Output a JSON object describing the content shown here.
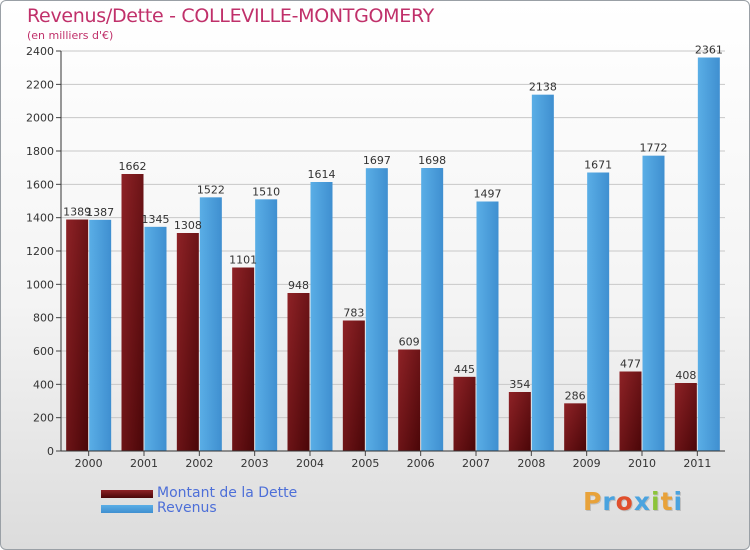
{
  "title": "Revenus/Dette - COLLEVILLE-MONTGOMERY",
  "subtitle": "(en milliers d'€)",
  "brand": "Proxiti",
  "colors": {
    "title": "#c0306a",
    "dette": "#7a1418",
    "revenus": "#4ea3e0",
    "legend_text": "#4d6fd8"
  },
  "chart_data": {
    "type": "bar",
    "title": "Revenus/Dette - COLLEVILLE-MONTGOMERY",
    "subtitle": "(en milliers d'€)",
    "categories": [
      "2000",
      "2001",
      "2002",
      "2003",
      "2004",
      "2005",
      "2006",
      "2007",
      "2008",
      "2009",
      "2010",
      "2011"
    ],
    "series": [
      {
        "name": "Montant de la Dette",
        "values": [
          1389,
          1662,
          1308,
          1101,
          948,
          783,
          609,
          445,
          354,
          286,
          477,
          408
        ],
        "labels": [
          "1389",
          "1662",
          "1308",
          "1101",
          "948",
          "783",
          "609",
          "445",
          "354",
          "286",
          "477",
          "408"
        ]
      },
      {
        "name": "Revenus",
        "values": [
          1387,
          1345,
          1522,
          1510,
          1614,
          1697,
          1698,
          1497,
          2138,
          1671,
          1772,
          2361
        ],
        "labels": [
          "1387",
          "1345",
          "1522",
          "1510",
          "1614",
          "1697",
          "1698",
          "1497",
          "2138",
          "1671",
          "1772",
          "2361"
        ]
      }
    ],
    "ylim": [
      0,
      2400
    ],
    "yticks": [
      0,
      200,
      400,
      600,
      800,
      1000,
      1200,
      1400,
      1600,
      1800,
      2000,
      2200,
      2400
    ],
    "ytick_labels": [
      "0",
      "200",
      "400",
      "600",
      "800",
      "1000",
      "1200",
      "1400",
      "1600",
      "1800",
      "2000",
      "2200",
      "2400"
    ],
    "grid": true,
    "legend_position": "bottom-left"
  }
}
